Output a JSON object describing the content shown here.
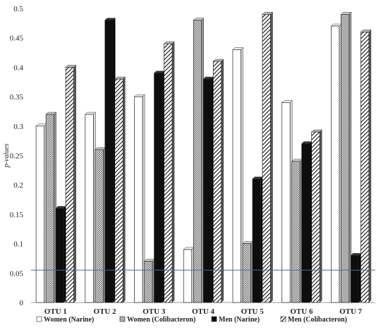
{
  "chart_data": {
    "type": "bar",
    "style": "3d-clustered-column",
    "title": "",
    "xlabel": "",
    "ylabel": "p-values",
    "ylim": [
      0,
      0.5
    ],
    "yticks": [
      "0",
      "0.05",
      "0.1",
      "0.15",
      "0.2",
      "0.25",
      "0.3",
      "0.35",
      "0.4",
      "0.45",
      "0.5"
    ],
    "grid": false,
    "legend_position": "bottom",
    "categories": [
      "OTU 1",
      "OTU 2",
      "OTU 3",
      "OTU 4",
      "OTU 5",
      "OTU 6",
      "OTU 7"
    ],
    "series": [
      {
        "name": "Women (Narine)",
        "pattern": "white",
        "values": [
          0.3,
          0.32,
          0.35,
          0.09,
          0.43,
          0.34,
          0.47
        ]
      },
      {
        "name": "Women (Colibacteron)",
        "pattern": "crosshatch",
        "values": [
          0.32,
          0.26,
          0.07,
          0.48,
          0.1,
          0.24,
          0.49
        ]
      },
      {
        "name": "Men (Narine)",
        "pattern": "black",
        "values": [
          0.16,
          0.48,
          0.39,
          0.38,
          0.21,
          0.27,
          0.08
        ]
      },
      {
        "name": "Men (Colibacteron)",
        "pattern": "diagonal",
        "values": [
          0.4,
          0.38,
          0.44,
          0.41,
          0.49,
          0.29,
          0.46
        ]
      }
    ],
    "reference_line": {
      "value": 0.055,
      "color": "#4a6a9a"
    }
  }
}
